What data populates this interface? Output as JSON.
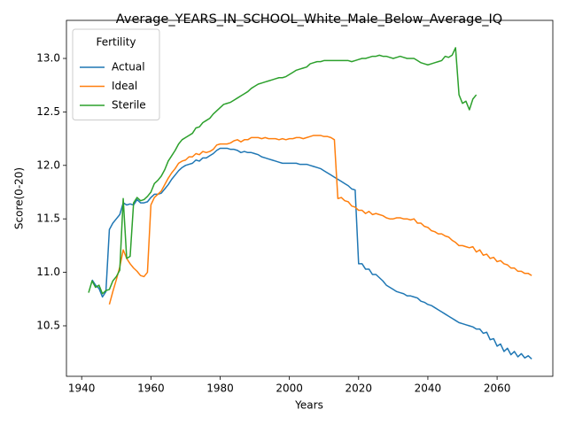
{
  "chart_data": {
    "type": "line",
    "title": "Average_YEARS_IN_SCHOOL_White_Male_Below_Average_IQ",
    "x_label": "Years",
    "y_label": "Score(0-20)",
    "legend_title": "Fertility",
    "legend_loc": "upper left",
    "x": [
      1942,
      1943,
      1944,
      1945,
      1946,
      1947,
      1948,
      1949,
      1950,
      1951,
      1952,
      1953,
      1954,
      1955,
      1956,
      1957,
      1958,
      1959,
      1960,
      1961,
      1962,
      1963,
      1964,
      1965,
      1966,
      1967,
      1968,
      1969,
      1970,
      1971,
      1972,
      1973,
      1974,
      1975,
      1976,
      1977,
      1978,
      1979,
      1980,
      1981,
      1982,
      1983,
      1984,
      1985,
      1986,
      1987,
      1988,
      1989,
      1990,
      1991,
      1992,
      1993,
      1994,
      1995,
      1996,
      1997,
      1998,
      1999,
      2000,
      2001,
      2002,
      2003,
      2004,
      2005,
      2006,
      2007,
      2008,
      2009,
      2010,
      2011,
      2012,
      2013,
      2014,
      2015,
      2016,
      2017,
      2018,
      2019,
      2020,
      2021,
      2022,
      2023,
      2024,
      2025,
      2026,
      2027,
      2028,
      2029,
      2030,
      2031,
      2032,
      2033,
      2034,
      2035,
      2036,
      2037,
      2038,
      2039,
      2040,
      2041,
      2042,
      2043,
      2044,
      2045,
      2046,
      2047,
      2048,
      2049,
      2050,
      2051,
      2052,
      2053,
      2054,
      2055,
      2056,
      2057,
      2058,
      2059,
      2060,
      2061,
      2062,
      2063,
      2064,
      2065,
      2066,
      2067,
      2068,
      2069,
      2070
    ],
    "series": [
      {
        "name": "Actual",
        "color": "#1f77b4",
        "values": [
          null,
          10.93,
          10.88,
          10.85,
          10.77,
          10.82,
          11.4,
          11.46,
          11.5,
          11.54,
          11.65,
          11.63,
          11.64,
          11.63,
          11.68,
          11.65,
          11.65,
          11.66,
          11.7,
          11.73,
          11.73,
          11.74,
          11.78,
          11.82,
          11.87,
          11.91,
          11.95,
          11.98,
          12.0,
          12.01,
          12.02,
          12.05,
          12.04,
          12.07,
          12.07,
          12.09,
          12.11,
          12.14,
          12.16,
          12.16,
          12.16,
          12.15,
          12.15,
          12.14,
          12.12,
          12.13,
          12.12,
          12.12,
          12.11,
          12.1,
          12.08,
          12.07,
          12.06,
          12.05,
          12.04,
          12.03,
          12.02,
          12.02,
          12.02,
          12.02,
          12.02,
          12.01,
          12.01,
          12.01,
          12.0,
          11.99,
          11.98,
          11.97,
          11.95,
          11.93,
          11.91,
          11.89,
          11.87,
          11.85,
          11.83,
          11.81,
          11.78,
          11.77,
          11.08,
          11.08,
          11.03,
          11.03,
          10.98,
          10.98,
          10.95,
          10.92,
          10.88,
          10.86,
          10.84,
          10.82,
          10.81,
          10.8,
          10.78,
          10.78,
          10.77,
          10.76,
          10.73,
          10.72,
          10.7,
          10.69,
          10.67,
          10.65,
          10.63,
          10.61,
          10.59,
          10.57,
          10.55,
          10.53,
          10.52,
          10.51,
          10.5,
          10.49,
          10.47,
          10.47,
          10.43,
          10.44,
          10.37,
          10.38,
          10.31,
          10.33,
          10.26,
          10.29,
          10.23,
          10.26,
          10.21,
          10.24,
          10.2,
          10.22,
          10.19
        ]
      },
      {
        "name": "Ideal",
        "color": "#ff7f0e",
        "values": [
          null,
          null,
          null,
          null,
          null,
          null,
          10.7,
          10.82,
          10.93,
          11.05,
          11.21,
          11.13,
          11.08,
          11.04,
          11.01,
          10.97,
          10.96,
          11.0,
          11.63,
          11.7,
          11.73,
          11.76,
          11.82,
          11.88,
          11.93,
          11.97,
          12.02,
          12.04,
          12.05,
          12.08,
          12.08,
          12.11,
          12.1,
          12.13,
          12.12,
          12.13,
          12.15,
          12.19,
          12.2,
          12.2,
          12.2,
          12.21,
          12.23,
          12.24,
          12.22,
          12.24,
          12.24,
          12.26,
          12.26,
          12.26,
          12.25,
          12.26,
          12.25,
          12.25,
          12.25,
          12.24,
          12.25,
          12.24,
          12.25,
          12.25,
          12.26,
          12.26,
          12.25,
          12.26,
          12.27,
          12.28,
          12.28,
          12.28,
          12.27,
          12.27,
          12.26,
          12.24,
          11.69,
          11.7,
          11.67,
          11.66,
          11.62,
          11.61,
          11.58,
          11.58,
          11.55,
          11.57,
          11.54,
          11.55,
          11.54,
          11.53,
          11.51,
          11.5,
          11.5,
          11.51,
          11.51,
          11.5,
          11.5,
          11.49,
          11.5,
          11.46,
          11.46,
          11.43,
          11.42,
          11.39,
          11.38,
          11.36,
          11.36,
          11.34,
          11.33,
          11.3,
          11.28,
          11.25,
          11.25,
          11.24,
          11.23,
          11.24,
          11.19,
          11.21,
          11.16,
          11.17,
          11.13,
          11.14,
          11.1,
          11.11,
          11.08,
          11.07,
          11.04,
          11.04,
          11.01,
          11.01,
          10.99,
          10.99,
          10.97
        ]
      },
      {
        "name": "Sterile",
        "color": "#2ca02c",
        "values": [
          10.81,
          10.92,
          10.86,
          10.88,
          10.8,
          10.83,
          10.84,
          10.92,
          10.96,
          11.02,
          11.69,
          11.13,
          11.15,
          11.65,
          11.7,
          11.67,
          11.68,
          11.71,
          11.75,
          11.83,
          11.86,
          11.9,
          11.96,
          12.04,
          12.09,
          12.14,
          12.2,
          12.24,
          12.26,
          12.28,
          12.3,
          12.35,
          12.36,
          12.4,
          12.42,
          12.44,
          12.48,
          12.51,
          12.54,
          12.57,
          12.58,
          12.59,
          12.61,
          12.63,
          12.65,
          12.67,
          12.69,
          12.72,
          12.74,
          12.76,
          12.77,
          12.78,
          12.79,
          12.8,
          12.81,
          12.82,
          12.82,
          12.83,
          12.85,
          12.87,
          12.89,
          12.9,
          12.91,
          12.92,
          12.95,
          12.96,
          12.97,
          12.97,
          12.98,
          12.98,
          12.98,
          12.98,
          12.98,
          12.98,
          12.98,
          12.98,
          12.97,
          12.98,
          12.99,
          13.0,
          13.0,
          13.01,
          13.02,
          13.02,
          13.03,
          13.02,
          13.02,
          13.01,
          13.0,
          13.01,
          13.02,
          13.01,
          13.0,
          13.0,
          13.0,
          12.98,
          12.96,
          12.95,
          12.94,
          12.95,
          12.96,
          12.97,
          12.98,
          13.02,
          13.01,
          13.03,
          13.1,
          12.66,
          12.58,
          12.6,
          12.52,
          12.62,
          12.66,
          null,
          null,
          null,
          null,
          null,
          null,
          null,
          null,
          null,
          null,
          null,
          null,
          null,
          null,
          null,
          null
        ]
      }
    ],
    "xlim": [
      1935.6,
      2076.1
    ],
    "ylim": [
      10.028,
      13.356
    ],
    "xticks": [
      1940,
      1960,
      1980,
      2000,
      2020,
      2040,
      2060
    ],
    "yticks": [
      10.5,
      {
        "value": 11,
        "label": "11.0"
      },
      11.5,
      {
        "value": 12,
        "label": "12.0"
      },
      12.5,
      {
        "value": 13,
        "label": "13.0"
      }
    ]
  }
}
